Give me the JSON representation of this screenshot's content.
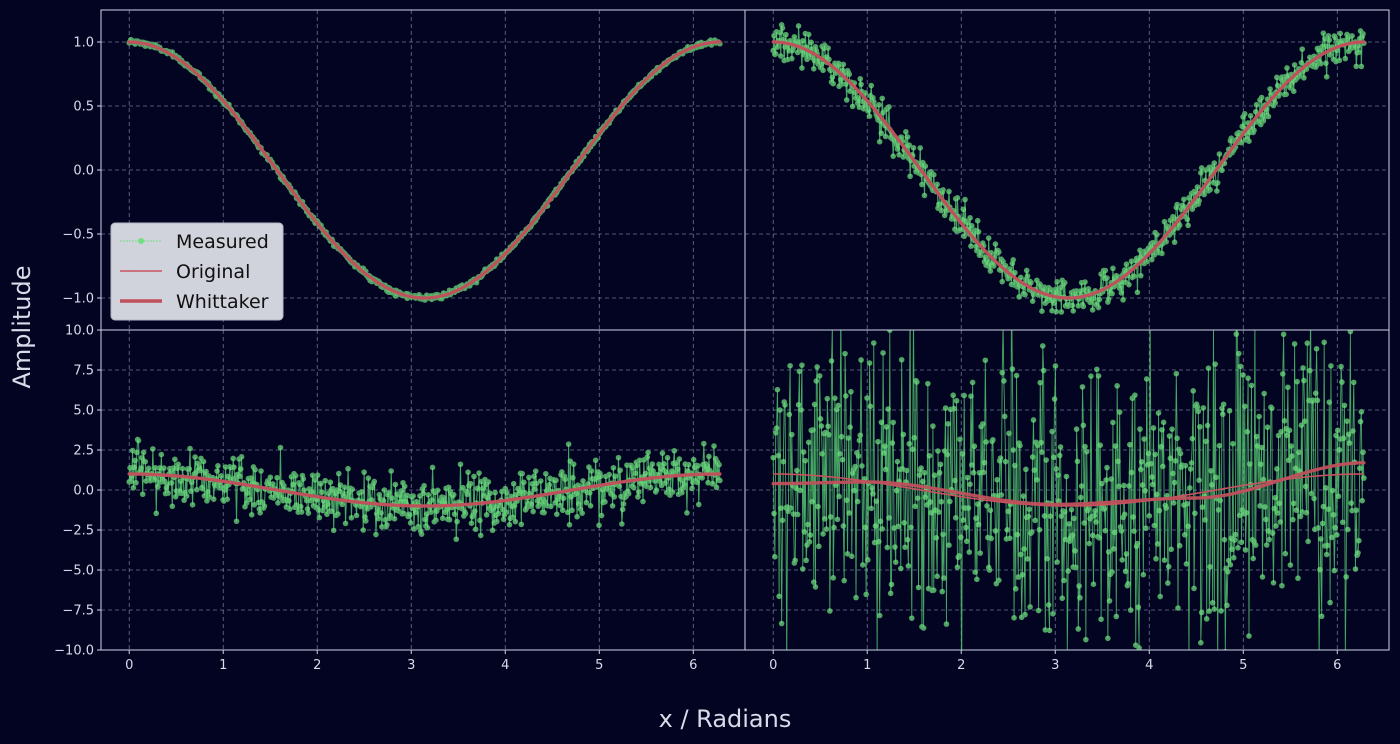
{
  "colors": {
    "background": "#020422",
    "panel_border": "#cfd3e6",
    "grid": "#8f9ab8",
    "measured": "#6fe07f",
    "measured_line": "#4fb86a",
    "original": "#c8525e",
    "whittaker": "#c0505c",
    "legend_bg": "#d7d9e3"
  },
  "chart_data": {
    "type": "line",
    "xlabel": "x / Radians",
    "ylabel": "Amplitude",
    "legend": {
      "placement": "center-left of top-left panel",
      "entries": [
        "Measured",
        "Original",
        "Whittaker"
      ]
    },
    "x_range": [
      0,
      6.283
    ],
    "xlim": [
      -0.3,
      6.55
    ],
    "x_ticks": [
      0,
      1,
      2,
      3,
      4,
      5,
      6
    ],
    "x_tick_labels": [
      "0",
      "1",
      "2",
      "3",
      "4",
      "5",
      "6"
    ],
    "grid": true,
    "panels": [
      {
        "position": "top-left",
        "ylim": [
          -1.25,
          1.25
        ],
        "y_ticks": [
          1.0,
          0.5,
          0.0,
          -0.5,
          -1.0
        ],
        "y_tick_labels": [
          "1.0",
          "0.5",
          "0.0",
          "−0.5",
          "−1.0"
        ],
        "noise_std": 0.01,
        "series": [
          {
            "name": "Measured",
            "kind": "noisy cosine",
            "y_at_x0": 1.0,
            "y_at_pi": -1.0
          },
          {
            "name": "Original",
            "function": "cos(x)"
          },
          {
            "name": "Whittaker",
            "function": "cos(x)"
          }
        ]
      },
      {
        "position": "top-right",
        "ylim": [
          -1.25,
          1.25
        ],
        "y_ticks": [
          1.0,
          0.5,
          0.0,
          -0.5,
          -1.0
        ],
        "noise_std": 0.07,
        "series": [
          {
            "name": "Measured",
            "kind": "noisy cosine",
            "y_min_approx": -1.2,
            "y_max_approx": 1.15
          },
          {
            "name": "Original",
            "function": "cos(x)"
          },
          {
            "name": "Whittaker",
            "function": "cos(x)"
          }
        ]
      },
      {
        "position": "bottom-left",
        "ylim": [
          -10,
          10
        ],
        "y_ticks": [
          10.0,
          7.5,
          5.0,
          2.5,
          0.0,
          -2.5,
          -5.0,
          -7.5,
          -10.0
        ],
        "y_tick_labels": [
          "10.0",
          "7.5",
          "5.0",
          "2.5",
          "0.0",
          "−2.5",
          "−5.0",
          "−7.5",
          "−10.0"
        ],
        "noise_std": 0.9,
        "series": [
          {
            "name": "Measured",
            "kind": "noisy cosine",
            "y_min_approx": -3.8,
            "y_max_approx": 3.4
          },
          {
            "name": "Original",
            "function": "cos(x)"
          },
          {
            "name": "Whittaker",
            "function": "cos(x)"
          }
        ]
      },
      {
        "position": "bottom-right",
        "ylim": [
          -10,
          10
        ],
        "y_ticks": [
          10.0,
          7.5,
          5.0,
          2.5,
          0.0,
          -2.5,
          -5.0,
          -7.5,
          -10.0
        ],
        "noise_std": 4.5,
        "series": [
          {
            "name": "Measured",
            "kind": "noisy cosine",
            "y_min_approx": -10,
            "y_max_approx": 10
          },
          {
            "name": "Original",
            "function": "cos(x)"
          },
          {
            "name": "Whittaker",
            "kind": "smoothed estimate",
            "y_at_x0": 0.4,
            "y_at_1": 0.5,
            "y_at_3": -0.9,
            "y_at_6.28": 1.7
          }
        ]
      }
    ]
  }
}
